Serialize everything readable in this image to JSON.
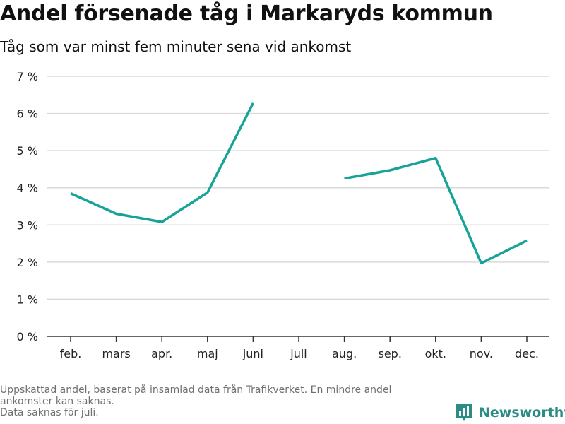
{
  "title": "Andel försenade tåg i Markaryds kommun",
  "subtitle": "Tåg som var minst fem minuter sena vid ankomst",
  "footnote": {
    "line1": "Uppskattad andel, baserat på insamlad data från Trafikverket. En mindre andel",
    "line2": "ankomster kan saknas.",
    "line3": "Data saknas för juli."
  },
  "brand": {
    "name": "Newsworthy",
    "icon": "newsworthy-logo-icon"
  },
  "colors": {
    "line": "#17a398",
    "grid": "#d9d9d9",
    "axis": "#333333",
    "brand": "#2a8c84"
  },
  "chart_data": {
    "type": "line",
    "categories": [
      "feb.",
      "mars",
      "apr.",
      "maj",
      "juni",
      "juli",
      "aug.",
      "sep.",
      "okt.",
      "nov.",
      "dec."
    ],
    "series": [
      {
        "values": [
          3.85,
          3.3,
          3.08,
          3.87,
          6.28,
          null,
          4.25,
          4.47,
          4.8,
          1.97,
          2.58
        ]
      }
    ],
    "ylim": [
      0,
      7
    ],
    "yticks": [
      {
        "value": 0,
        "label": "0 %"
      },
      {
        "value": 1,
        "label": "1 %"
      },
      {
        "value": 2,
        "label": "2 %"
      },
      {
        "value": 3,
        "label": "3 %"
      },
      {
        "value": 4,
        "label": "4 %"
      },
      {
        "value": 5,
        "label": "5 %"
      },
      {
        "value": 6,
        "label": "6 %"
      },
      {
        "value": 7,
        "label": "7 %"
      }
    ],
    "grid": true
  }
}
